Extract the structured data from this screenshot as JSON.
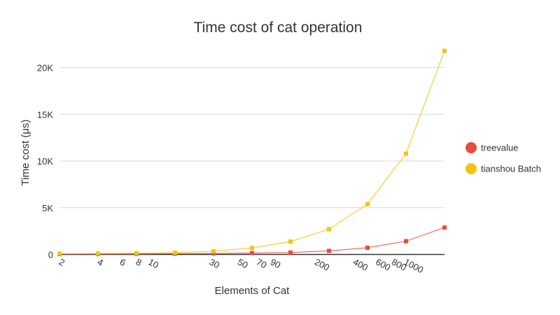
{
  "chart_data": {
    "type": "line",
    "title": "Time cost of cat operation",
    "xlabel": "Elements of Cat",
    "ylabel": "Time cost (μs)",
    "x": [
      1,
      2,
      4,
      8,
      16,
      32,
      64,
      128,
      256,
      512,
      1024
    ],
    "x_tick_labels": [
      "2",
      "4",
      "6",
      "8",
      "10",
      "30",
      "50",
      "70",
      "90",
      "200",
      "400",
      "600",
      "800",
      "1000"
    ],
    "y_ticks": [
      0,
      5000,
      10000,
      15000,
      20000
    ],
    "y_tick_labels": [
      "0",
      "5K",
      "10K",
      "15K",
      "20K"
    ],
    "ylim": [
      0,
      22000
    ],
    "x_scale": "log",
    "grid": "horizontal",
    "legend_position": "right",
    "series": [
      {
        "name": "treevalue",
        "color": "#e74c3c",
        "values": [
          35,
          45,
          60,
          80,
          110,
          150,
          210,
          380,
          720,
          1420,
          2880
        ]
      },
      {
        "name": "tianshou Batch",
        "color": "#f1c40f",
        "values": [
          85,
          100,
          140,
          190,
          350,
          700,
          1380,
          2700,
          5400,
          10800,
          21800
        ]
      }
    ]
  }
}
